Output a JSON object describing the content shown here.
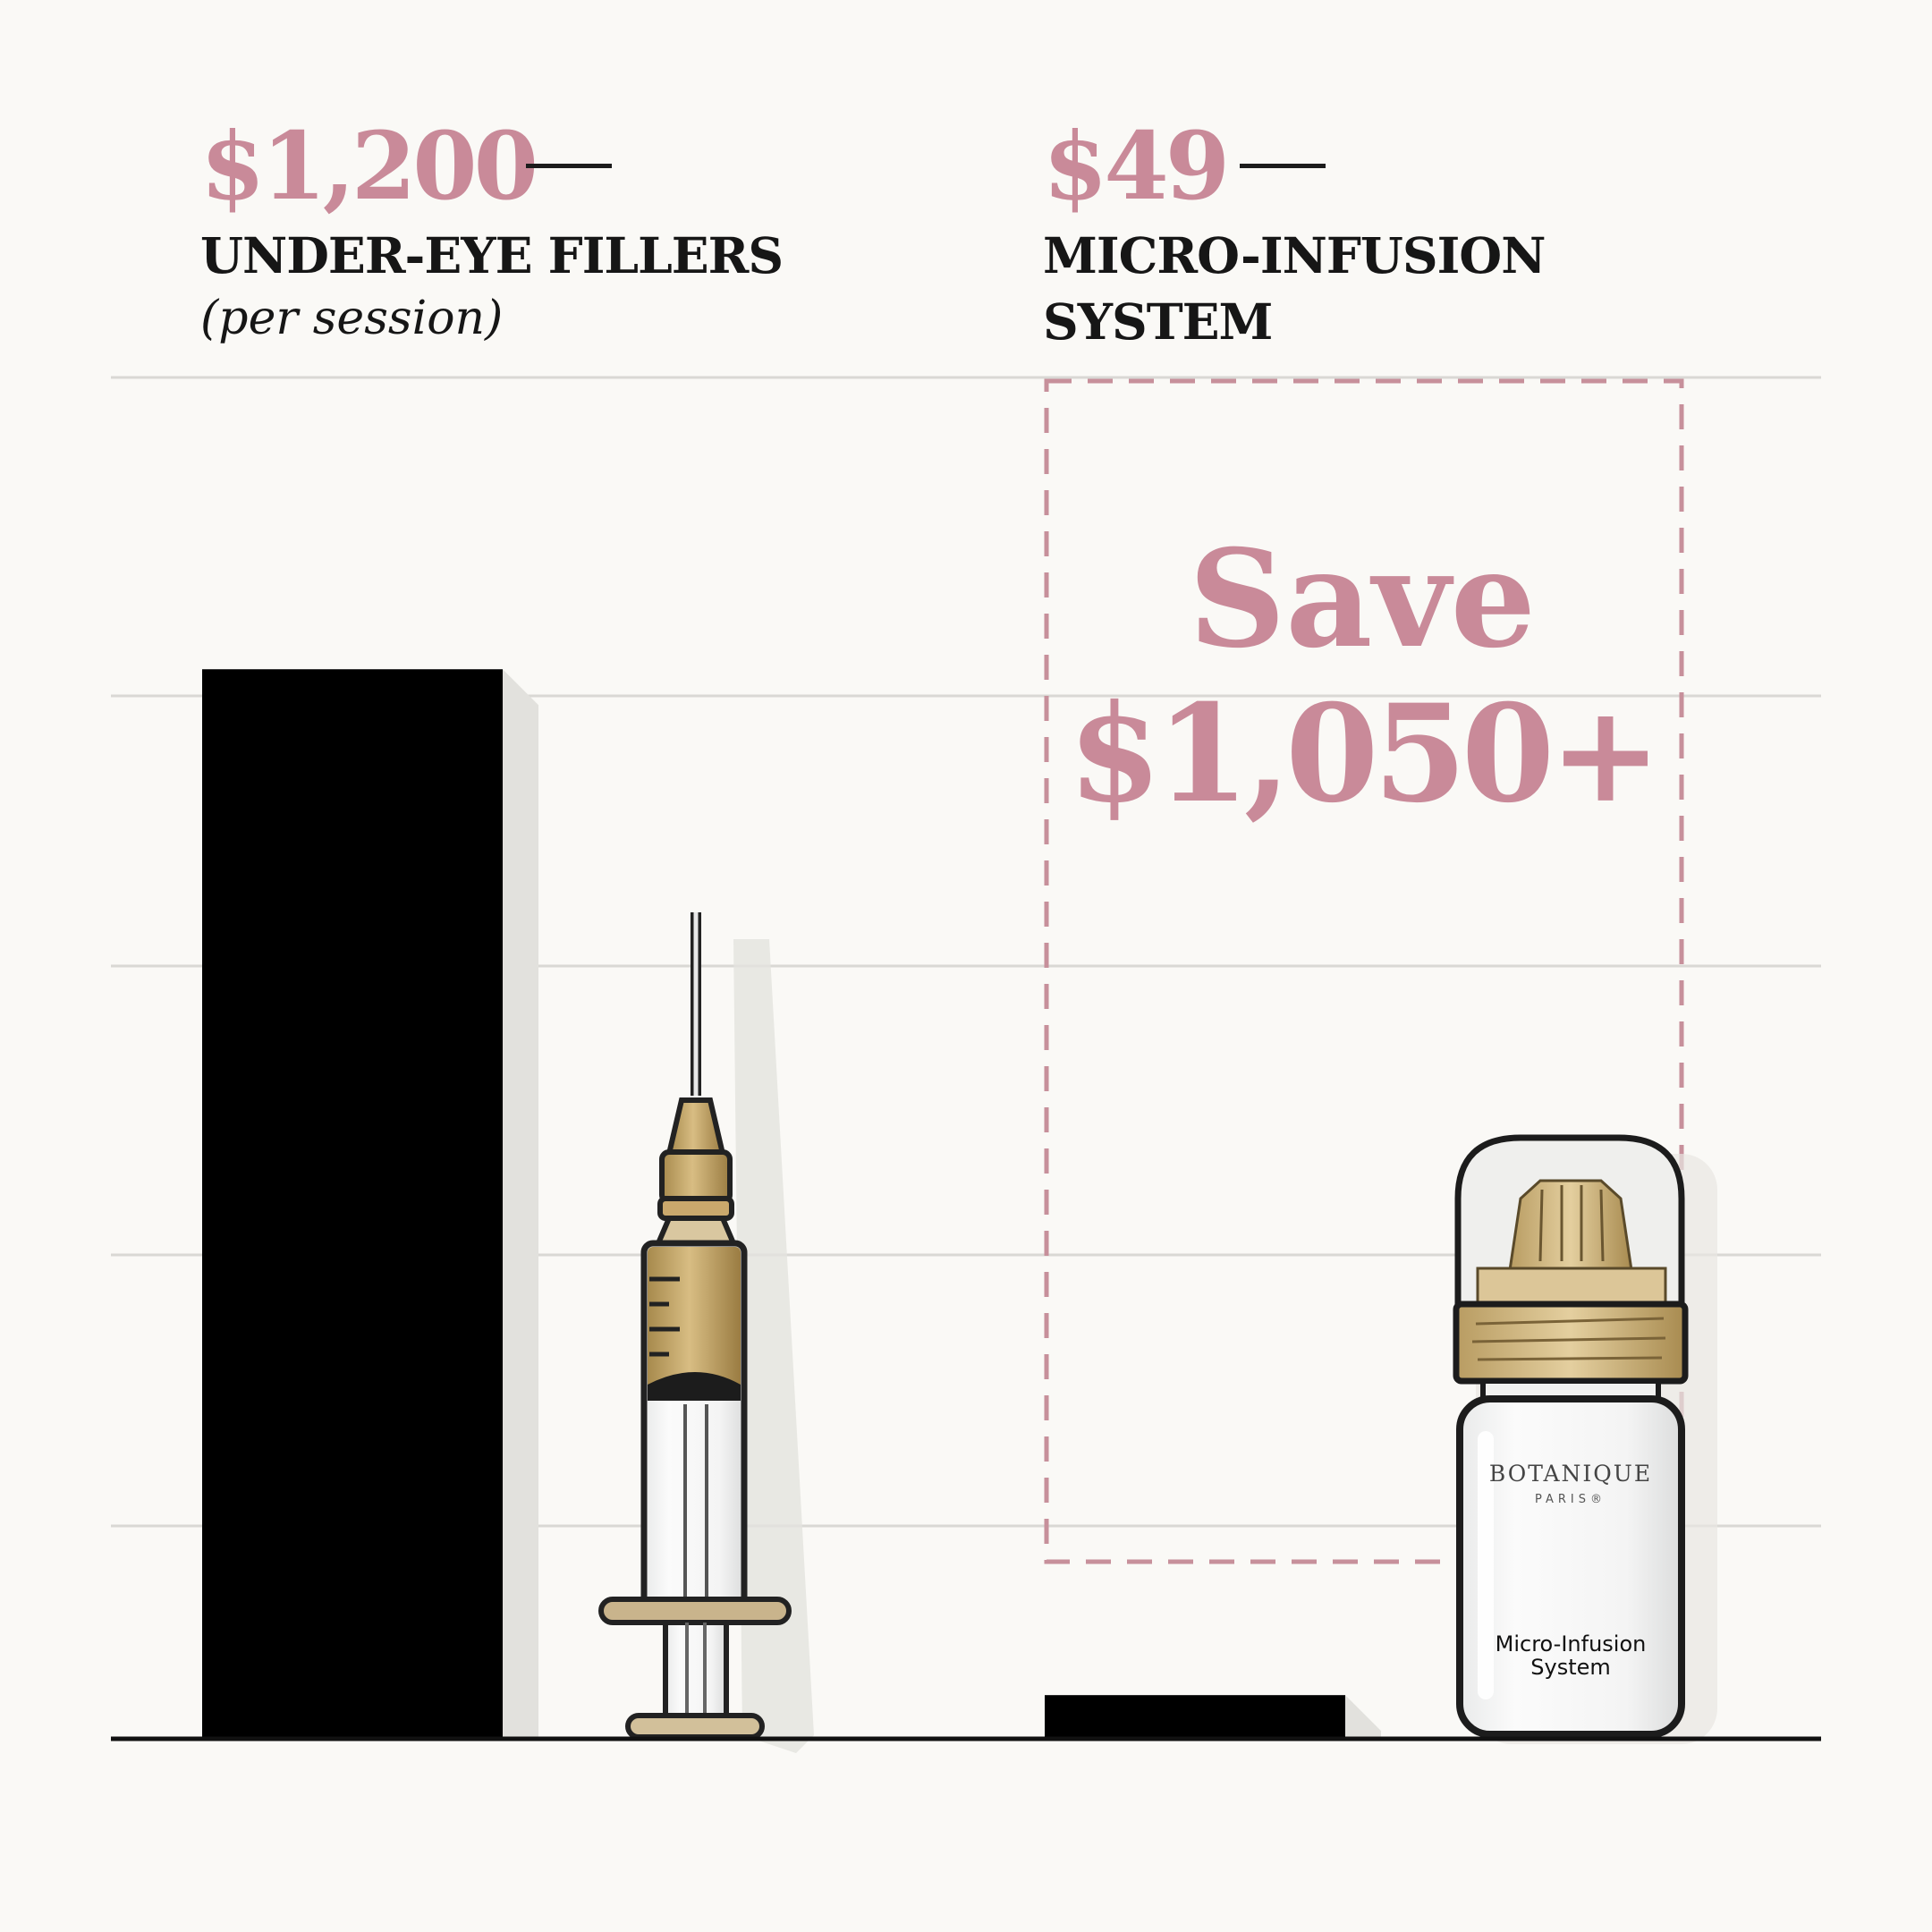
{
  "chart_data": {
    "type": "bar",
    "categories": [
      "UNDER-EYE FILLERS",
      "MICRO-INFUSION SYSTEM"
    ],
    "values": [
      1200,
      49
    ],
    "ylim": [
      0,
      1700
    ],
    "grid": true,
    "accent_color": "#c98a99",
    "bar_color": "#000000",
    "bars": [
      {
        "price": "$1,200",
        "label_lines": [
          "UNDER-EYE FILLERS"
        ],
        "sublabel": "(per session)"
      },
      {
        "price": "$49",
        "label_lines": [
          "MICRO-INFUSION",
          "SYSTEM"
        ],
        "sublabel": ""
      }
    ],
    "savings": {
      "line1": "Save",
      "line2": "$1,050+",
      "amount": 1050
    }
  },
  "product": {
    "brand": "BOTANIQUE",
    "brand_sub": "PARIS®",
    "label_line1": "Micro-Infusion",
    "label_line2": "System"
  },
  "icons": [
    "syringe-icon",
    "serum-bottle-icon"
  ]
}
